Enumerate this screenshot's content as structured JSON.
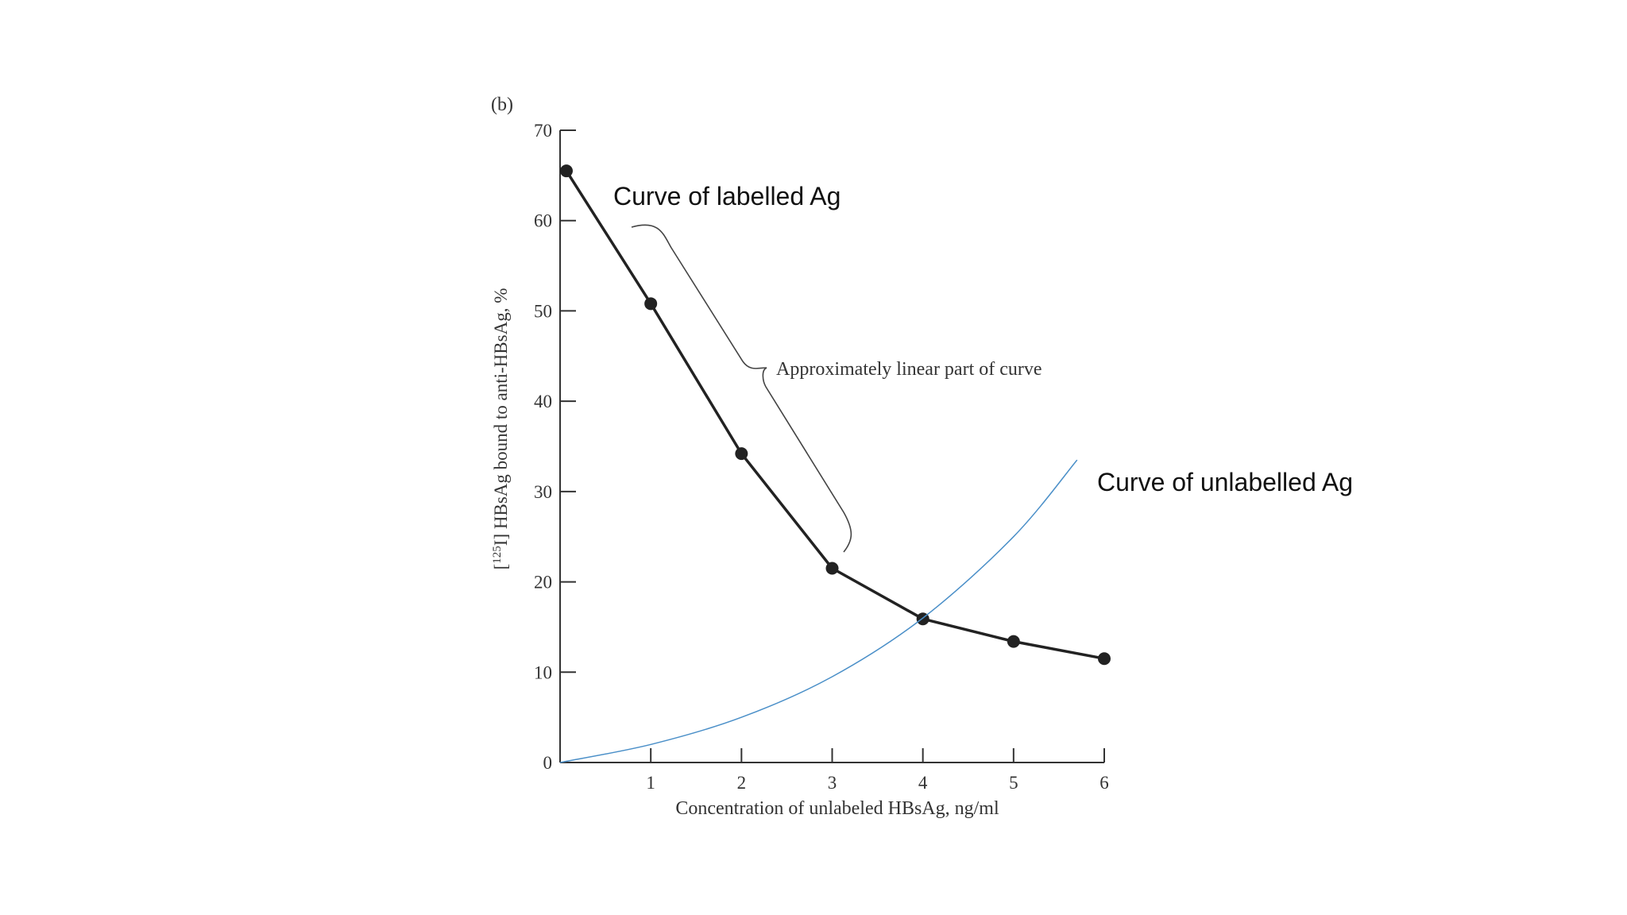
{
  "panel_label": "(b)",
  "annotations": {
    "labelled_curve": "Curve of labelled Ag",
    "unlabelled_curve": "Curve of unlabelled Ag",
    "linear_part": "Approximately linear part of curve"
  },
  "chart_data": {
    "type": "line",
    "title": "",
    "xlabel": "Concentration of unlabeled HBsAg, ng/ml",
    "ylabel_prefix": "[",
    "ylabel_sup": "125",
    "ylabel_rest": "I] HBsAg bound to anti-HBsAg, %",
    "xlim": [
      0,
      6
    ],
    "ylim": [
      0,
      70
    ],
    "x_ticks": [
      1,
      2,
      3,
      4,
      5,
      6
    ],
    "y_ticks": [
      0,
      10,
      20,
      30,
      40,
      50,
      60,
      70
    ],
    "grid": false,
    "series": [
      {
        "color": "#222222",
        "markers": true,
        "x": [
          0.07,
          1,
          2,
          3,
          4,
          5,
          6
        ],
        "y": [
          65.5,
          50.8,
          34.2,
          21.5,
          15.9,
          13.4,
          11.5
        ]
      },
      {
        "color": "#4a8fc8",
        "markers": false,
        "x": [
          0,
          1,
          2,
          3,
          4,
          5,
          5.7
        ],
        "y": [
          0,
          2,
          5,
          9.5,
          16,
          25,
          33.5
        ]
      }
    ]
  }
}
